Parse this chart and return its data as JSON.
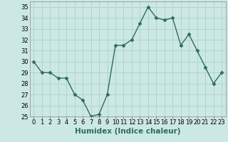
{
  "x": [
    0,
    1,
    2,
    3,
    4,
    5,
    6,
    7,
    8,
    9,
    10,
    11,
    12,
    13,
    14,
    15,
    16,
    17,
    18,
    19,
    20,
    21,
    22,
    23
  ],
  "y": [
    30,
    29,
    29,
    28.5,
    28.5,
    27,
    26.5,
    25,
    25.2,
    27,
    31.5,
    31.5,
    32,
    33.5,
    35,
    34,
    33.8,
    34,
    31.5,
    32.5,
    31,
    29.5,
    28,
    29
  ],
  "line_color": "#2e6b5e",
  "marker_color": "#2e6b5e",
  "bg_color": "#cce8e4",
  "grid_color": "#b0d4d0",
  "xlabel": "Humidex (Indice chaleur)",
  "xlim": [
    -0.5,
    23.5
  ],
  "ylim": [
    25,
    35.5
  ],
  "yticks": [
    25,
    26,
    27,
    28,
    29,
    30,
    31,
    32,
    33,
    34,
    35
  ],
  "xticks": [
    0,
    1,
    2,
    3,
    4,
    5,
    6,
    7,
    8,
    9,
    10,
    11,
    12,
    13,
    14,
    15,
    16,
    17,
    18,
    19,
    20,
    21,
    22,
    23
  ],
  "xlabel_fontsize": 7.5,
  "tick_fontsize": 6,
  "line_width": 1.0,
  "marker_size": 2.5
}
